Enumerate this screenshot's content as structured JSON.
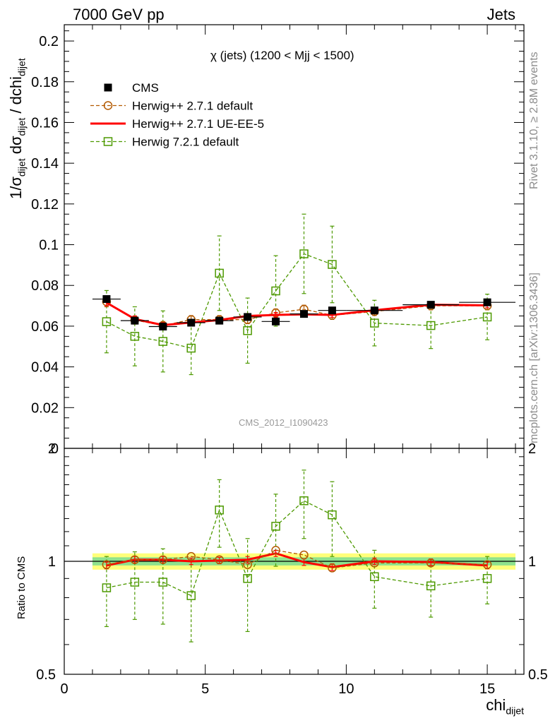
{
  "header": {
    "left": "7000 GeV pp",
    "right": "Jets"
  },
  "side_labels": {
    "top": "Rivet 3.1.10, ≥ 2.8M events",
    "bottom": "mcplots.cern.ch [arXiv:1306.3436]"
  },
  "watermark": "CMS_2012_I1090423",
  "chart_data": [
    {
      "type": "scatter",
      "panel": "main",
      "title": "χ (jets) (1200 < Mjj < 1500)",
      "ylabel": "1/σdijet dσdijet / dchidijet",
      "ylabel_parts": {
        "a": "1/σ",
        "a_sub": "dijet",
        "b": " dσ",
        "b_sub": "dijet",
        "c": " / dchi",
        "c_sub": "dijet"
      },
      "xlim": [
        0,
        16.3
      ],
      "ylim": [
        0,
        0.208
      ],
      "yticks": [
        0,
        0.02,
        0.04,
        0.06,
        0.08,
        0.1,
        0.12,
        0.14,
        0.16,
        0.18,
        0.2
      ],
      "ytick_labels": [
        "0",
        "0.02",
        "0.04",
        "0.06",
        "0.08",
        "0.1",
        "0.12",
        "0.14",
        "0.16",
        "0.18",
        "0.2"
      ],
      "legend_position": "top-left",
      "series": [
        {
          "name": "CMS",
          "color": "#000000",
          "marker": "filled-square",
          "x": [
            1.5,
            2.5,
            3.5,
            4.5,
            5.5,
            6.5,
            7.5,
            8.5,
            9.5,
            11,
            13,
            15
          ],
          "y": [
            0.0733,
            0.0627,
            0.0598,
            0.0617,
            0.0627,
            0.0645,
            0.0623,
            0.066,
            0.0677,
            0.0677,
            0.0705,
            0.0717
          ],
          "xerr": [
            0.5,
            0.5,
            0.5,
            0.5,
            0.5,
            0.5,
            0.5,
            0.5,
            0.5,
            1,
            1,
            1
          ]
        },
        {
          "name": "Herwig++ 2.7.1 default",
          "color": "#b35900",
          "marker": "open-circle",
          "line": "dashed",
          "x": [
            1.5,
            2.5,
            3.5,
            4.5,
            5.5,
            6.5,
            7.5,
            8.5,
            9.5,
            11,
            13,
            15
          ],
          "y": [
            0.072,
            0.063,
            0.0603,
            0.0632,
            0.0632,
            0.0632,
            0.0665,
            0.0683,
            0.0653,
            0.0672,
            0.07,
            0.07
          ],
          "yerr": [
            0.0025,
            0.002,
            0.002,
            0.002,
            0.002,
            0.002,
            0.002,
            0.002,
            0.002,
            0.002,
            0.002,
            0.002
          ]
        },
        {
          "name": "Herwig++ 2.7.1 UE-EE-5",
          "color": "#ff0000",
          "marker": "none",
          "line": "solid",
          "x": [
            1.5,
            2.5,
            3.5,
            4.5,
            5.5,
            6.5,
            7.5,
            8.5,
            9.5,
            11,
            13,
            15
          ],
          "y": [
            0.0715,
            0.0635,
            0.0605,
            0.0618,
            0.063,
            0.065,
            0.0655,
            0.0658,
            0.0655,
            0.0678,
            0.0705,
            0.0702
          ],
          "yerr": [
            0.0015,
            0.0015,
            0.0012,
            0.0012,
            0.0012,
            0.0012,
            0.0012,
            0.0012,
            0.0012,
            0.0012,
            0.0012,
            0.0012
          ]
        },
        {
          "name": "Herwig 7.2.1 default",
          "color": "#4d9900",
          "marker": "open-square",
          "line": "dashed",
          "x": [
            1.5,
            2.5,
            3.5,
            4.5,
            5.5,
            6.5,
            7.5,
            8.5,
            9.5,
            11,
            13,
            15
          ],
          "y": [
            0.0622,
            0.055,
            0.0525,
            0.0492,
            0.086,
            0.0578,
            0.0773,
            0.0955,
            0.0903,
            0.0615,
            0.0603,
            0.0645
          ],
          "yerr": [
            0.0153,
            0.0145,
            0.015,
            0.013,
            0.0183,
            0.016,
            0.0173,
            0.0195,
            0.0188,
            0.0112,
            0.0113,
            0.0112
          ]
        }
      ]
    },
    {
      "type": "scatter",
      "panel": "ratio",
      "ylabel": "Ratio to CMS",
      "xlabel": "chidijet",
      "xlabel_parts": {
        "a": "chi",
        "a_sub": "dijet"
      },
      "xlim": [
        0,
        16.3
      ],
      "ylim": [
        0.5,
        2.0
      ],
      "yscale": "log",
      "yticks": [
        0.5,
        1,
        2
      ],
      "ytick_labels": [
        "0.5",
        "1",
        "2"
      ],
      "xticks": [
        0,
        5,
        10,
        15
      ],
      "xtick_labels": [
        "0",
        "5",
        "10",
        "15"
      ],
      "band": {
        "x": [
          1,
          16
        ],
        "yellow": [
          0.95,
          1.05
        ],
        "green": [
          0.975,
          1.025
        ]
      },
      "series": [
        {
          "name": "Herwig++ 2.7.1 default",
          "color": "#b35900",
          "marker": "open-circle",
          "line": "dashed",
          "x": [
            1.5,
            2.5,
            3.5,
            4.5,
            5.5,
            6.5,
            7.5,
            8.5,
            9.5,
            11,
            13,
            15
          ],
          "y": [
            0.98,
            1.01,
            1.01,
            1.03,
            1.01,
            0.98,
            1.07,
            1.04,
            0.96,
            0.99,
            0.99,
            0.98
          ]
        },
        {
          "name": "Herwig++ 2.7.1 UE-EE-5",
          "color": "#ff0000",
          "marker": "none",
          "line": "solid",
          "x": [
            1.5,
            2.5,
            3.5,
            4.5,
            5.5,
            6.5,
            7.5,
            8.5,
            9.5,
            11,
            13,
            15
          ],
          "y": [
            0.975,
            1.01,
            1.01,
            1.0,
            1.005,
            1.01,
            1.05,
            0.995,
            0.965,
            1.0,
            0.995,
            0.975
          ],
          "yerr": [
            0.02,
            0.02,
            0.02,
            0.02,
            0.02,
            0.02,
            0.02,
            0.02,
            0.02,
            0.02,
            0.02,
            0.02
          ]
        },
        {
          "name": "Herwig 7.2.1 default",
          "color": "#4d9900",
          "marker": "open-square",
          "line": "dashed",
          "x": [
            1.5,
            2.5,
            3.5,
            4.5,
            5.5,
            6.5,
            7.5,
            8.5,
            9.5,
            11,
            13,
            15
          ],
          "y": [
            0.85,
            0.88,
            0.88,
            0.81,
            1.37,
            0.9,
            1.24,
            1.45,
            1.33,
            0.91,
            0.86,
            0.9
          ],
          "yerr": [
            0.18,
            0.18,
            0.2,
            0.2,
            0.28,
            0.25,
            0.27,
            0.3,
            0.3,
            0.16,
            0.15,
            0.13
          ]
        }
      ]
    }
  ]
}
